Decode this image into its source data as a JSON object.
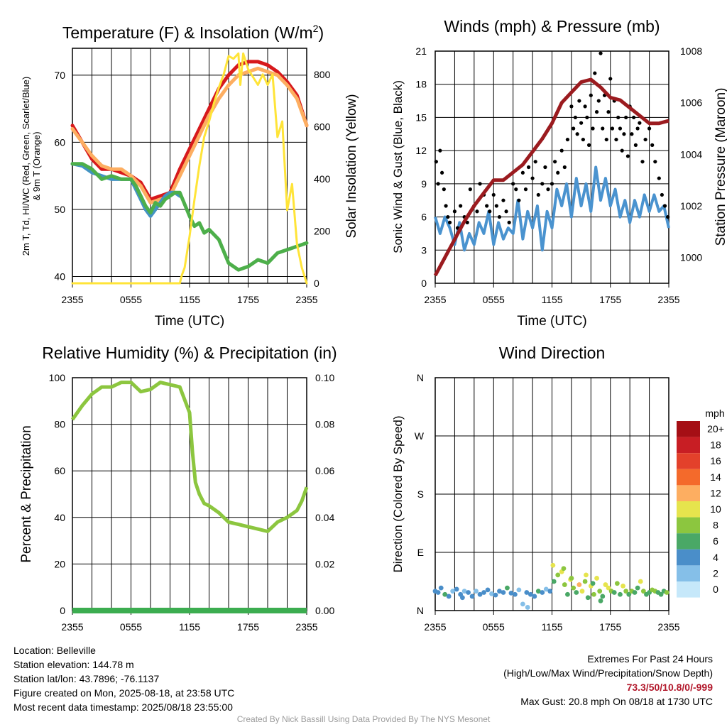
{
  "chart_data": [
    {
      "type": "line",
      "title": "Temperature (F) & Insolation (W/m²)",
      "ylabel": "2m T, Td, HI/WC (Red, Green, Scarlet/Blue) & 9m T (Orange)",
      "ylabel_right": "Solar Insolation (Yellow)",
      "xlabel": "Time (UTC)",
      "x_ticks": [
        "2355",
        "0555",
        "1155",
        "1755",
        "2355"
      ],
      "x_hours": [
        0,
        2,
        4,
        6,
        8,
        10,
        12,
        14,
        16,
        18,
        20,
        22,
        24
      ],
      "ylim": [
        39,
        74
      ],
      "y_ticks": [
        40,
        50,
        60,
        70
      ],
      "ylim_right": [
        0,
        900
      ],
      "y_ticks_right": [
        0,
        200,
        400,
        600,
        800
      ],
      "grid": true,
      "series": [
        {
          "color": "#d7191c",
          "axis": "left",
          "width": 5,
          "x": [
            0,
            1,
            2,
            3,
            4,
            5,
            6,
            7,
            8,
            9,
            10,
            11,
            12,
            13,
            14,
            15,
            16,
            17,
            18,
            19,
            20,
            21,
            22,
            23,
            24
          ],
          "y": [
            62.5,
            60,
            57.5,
            56,
            56,
            55.5,
            55,
            54,
            51.5,
            52,
            52.5,
            56,
            59,
            62,
            65,
            68,
            70,
            71.5,
            72,
            72,
            71.5,
            70.5,
            69,
            67,
            62.5
          ]
        },
        {
          "color": "#fdae61",
          "axis": "left",
          "width": 5,
          "x": [
            0,
            1,
            2,
            3,
            4,
            5,
            6,
            7,
            8,
            9,
            10,
            11,
            12,
            13,
            14,
            15,
            16,
            17,
            18,
            19,
            20,
            21,
            22,
            23,
            24
          ],
          "y": [
            62,
            60,
            58,
            56.5,
            56,
            56,
            55,
            53.5,
            51,
            51.5,
            52,
            55,
            58,
            61,
            64,
            66.5,
            68.5,
            70,
            70.5,
            71,
            70.5,
            70,
            68.5,
            66.5,
            62.5
          ]
        },
        {
          "color": "#4393c3",
          "axis": "left",
          "width": 5,
          "x": [
            0,
            1,
            2,
            3,
            4,
            5,
            6,
            6.5,
            7,
            7.5,
            8,
            8.5,
            9,
            9.5,
            10,
            10.5,
            11
          ],
          "y": [
            56.8,
            56.5,
            55.5,
            55,
            54.5,
            54.5,
            54.5,
            53,
            51.5,
            50,
            49,
            50,
            51,
            52,
            52.5,
            52.5,
            52
          ]
        },
        {
          "color": "#4daf4a",
          "axis": "left",
          "width": 5,
          "x": [
            0,
            1,
            2,
            3,
            4,
            5,
            6,
            6.5,
            7,
            7.5,
            8,
            8.5,
            9,
            9.5,
            10,
            10.5,
            11,
            12,
            12.5,
            13,
            13.5,
            14,
            15,
            16,
            17,
            18,
            19,
            20,
            21,
            22,
            23,
            24
          ],
          "y": [
            56.8,
            56.8,
            56,
            54.5,
            55,
            54.5,
            54.5,
            53.5,
            52,
            50.5,
            49.5,
            51,
            50.5,
            51.5,
            52,
            52.5,
            52.5,
            49,
            47.5,
            48,
            46.5,
            47,
            45.5,
            42,
            41,
            41.5,
            42.5,
            42,
            43.5,
            44,
            44.5,
            45
          ]
        },
        {
          "color": "#ffe438",
          "axis": "right",
          "width": 3,
          "x": [
            0,
            2,
            4,
            6,
            8,
            10,
            11,
            11.2,
            11.5,
            12,
            12.5,
            13,
            13.5,
            14,
            14.5,
            15,
            15.5,
            16,
            16.5,
            17,
            17.2,
            17.5,
            18,
            18.5,
            19,
            19.5,
            20,
            20.5,
            21,
            21.5,
            22,
            22.5,
            23,
            23.5,
            24
          ],
          "y": [
            0,
            0,
            0,
            0,
            0,
            0,
            0,
            30,
            60,
            180,
            320,
            450,
            560,
            620,
            690,
            750,
            800,
            870,
            860,
            880,
            760,
            880,
            820,
            790,
            760,
            800,
            760,
            800,
            560,
            620,
            280,
            380,
            150,
            60,
            0
          ]
        }
      ]
    },
    {
      "type": "line",
      "title": "Winds (mph) & Pressure (mb)",
      "ylabel": "Sonic Wind & Gust (Blue, Black)",
      "ylabel_right": "Station Pressure (Maroon)",
      "xlabel": "Time (UTC)",
      "x_ticks": [
        "2355",
        "0555",
        "1155",
        "1755",
        "2355"
      ],
      "ylim": [
        0,
        21
      ],
      "y_ticks": [
        0,
        3,
        6,
        9,
        12,
        15,
        18,
        21
      ],
      "ylim_right": [
        999,
        1008
      ],
      "y_ticks_right": [
        1000,
        1002,
        1004,
        1006,
        1008
      ],
      "grid": true,
      "series": [
        {
          "color": "#4a93cf",
          "axis": "left",
          "width": 4,
          "x": [
            0,
            0.5,
            1,
            1.5,
            2,
            2.5,
            3,
            3.5,
            4,
            4.5,
            5,
            5.5,
            6,
            6.5,
            7,
            7.5,
            8,
            8.5,
            9,
            9.5,
            10,
            10.5,
            11,
            11.5,
            12,
            12.5,
            13,
            13.5,
            14,
            14.5,
            15,
            15.5,
            16,
            16.5,
            17,
            17.5,
            18,
            18.5,
            19,
            19.5,
            20,
            20.5,
            21,
            21.5,
            22,
            22.5,
            23,
            23.5,
            24
          ],
          "y": [
            6,
            4.5,
            6,
            5,
            3.5,
            5.5,
            3,
            4.5,
            3.5,
            5.5,
            4.5,
            6.5,
            3.5,
            5.5,
            4,
            5,
            4.5,
            7.5,
            4,
            6.5,
            5,
            7,
            3,
            6.5,
            5,
            8.5,
            7,
            9,
            6,
            9.5,
            7,
            9,
            6.5,
            10.5,
            7.5,
            9.5,
            7,
            8.5,
            6,
            7.5,
            5.5,
            7.5,
            6,
            8,
            6.5,
            8,
            6.5,
            7,
            5
          ]
        },
        {
          "color": "#9b1b1f",
          "axis": "right",
          "width": 5,
          "x": [
            0,
            1,
            2,
            3,
            4,
            5,
            6,
            7,
            8,
            9,
            10,
            11,
            12,
            13,
            14,
            15,
            16,
            17,
            18,
            19,
            20,
            21,
            22,
            23,
            24
          ],
          "y": [
            999.3,
            1000,
            1000.7,
            1001.4,
            1002,
            1002.5,
            1003,
            1003,
            1003.3,
            1003.6,
            1004.1,
            1004.6,
            1005.2,
            1006,
            1006.4,
            1006.8,
            1006.9,
            1006.6,
            1006.2,
            1006.1,
            1005.8,
            1005.5,
            1005.2,
            1005.2,
            1005.3
          ]
        }
      ],
      "gust_points": {
        "color": "#000000",
        "x": [
          0.1,
          0.3,
          0.5,
          0.7,
          0.9,
          1.1,
          1.3,
          1.5,
          2.0,
          2.3,
          2.6,
          3.0,
          3.3,
          3.6,
          4.0,
          4.3,
          4.6,
          5.0,
          5.3,
          5.6,
          6.0,
          6.3,
          6.6,
          7.0,
          7.3,
          7.6,
          8.0,
          8.3,
          8.6,
          9.0,
          9.3,
          9.6,
          10.0,
          10.3,
          10.6,
          11.0,
          11.3,
          11.6,
          12.0,
          12.3,
          12.6,
          13.0,
          13.3,
          13.6,
          14.0,
          14.2,
          14.4,
          14.6,
          14.8,
          15.0,
          15.2,
          15.4,
          15.6,
          15.8,
          16.0,
          16.2,
          16.4,
          16.6,
          16.8,
          17.0,
          17.2,
          17.4,
          17.6,
          17.8,
          18.0,
          18.2,
          18.4,
          18.6,
          18.8,
          19.0,
          19.2,
          19.4,
          19.6,
          19.8,
          20.0,
          20.2,
          20.4,
          20.6,
          20.8,
          21.0,
          21.3,
          21.6,
          22.0,
          22.3,
          22.6,
          23.0,
          23.3,
          23.6,
          23.9
        ],
        "y": [
          11,
          9,
          12,
          10,
          8.5,
          7,
          6,
          5.5,
          6.5,
          5,
          7,
          6,
          5.5,
          8.5,
          7,
          6.5,
          9,
          8,
          7,
          6.5,
          8,
          7,
          6,
          7.5,
          6.5,
          5.5,
          9,
          8.5,
          7.5,
          10,
          8.5,
          10.5,
          9.5,
          11,
          8,
          9,
          10.5,
          8.5,
          9,
          11,
          10,
          12,
          10.5,
          13,
          16,
          14,
          15,
          13.5,
          16.5,
          14.5,
          13,
          16,
          15,
          12.5,
          17,
          14,
          19,
          15.5,
          16.5,
          20.8,
          14,
          17,
          13,
          15.5,
          18.5,
          14,
          16.5,
          13,
          15,
          14,
          12,
          13.5,
          15,
          11.5,
          16,
          13.5,
          15,
          12.5,
          14,
          14.5,
          11,
          13,
          14,
          12.5,
          11,
          9.5,
          8,
          7,
          6
        ]
      }
    },
    {
      "type": "line",
      "title": "Relative Humidity (%) & Precipitation (in)",
      "ylabel": "Percent & Precipitation",
      "x_ticks": [
        "2355",
        "0555",
        "1155",
        "1755",
        "2355"
      ],
      "ylim": [
        0,
        100
      ],
      "y_ticks": [
        0,
        20,
        40,
        60,
        80,
        100
      ],
      "ylim_right": [
        0,
        0.1
      ],
      "y_ticks_right": [
        "0.00",
        "0.02",
        "0.04",
        "0.06",
        "0.08",
        "0.10"
      ],
      "grid": true,
      "series": [
        {
          "color": "#8cc63f",
          "axis": "left",
          "width": 5,
          "x": [
            0,
            0.5,
            1,
            2,
            3,
            4,
            5,
            6,
            7,
            8,
            9,
            10,
            11,
            12,
            12.3,
            12.6,
            13,
            13.5,
            14,
            15,
            16,
            17,
            18,
            19,
            20,
            20.5,
            21,
            22,
            23,
            23.5,
            24
          ],
          "y": [
            82,
            85,
            88,
            93,
            96,
            96,
            98,
            98,
            94,
            95,
            98,
            97,
            96,
            85,
            68,
            55,
            50,
            46,
            45,
            42,
            38,
            37,
            36,
            35,
            34,
            36,
            38,
            40,
            43,
            47,
            53
          ]
        },
        {
          "color": "#3cad50",
          "axis": "right",
          "width": 8,
          "x": [
            0,
            24
          ],
          "y": [
            0,
            0
          ]
        }
      ]
    },
    {
      "type": "scatter",
      "title": "Wind Direction",
      "ylabel": "Direction (Colored By Speed)",
      "x_ticks": [
        "2355",
        "0555",
        "1155",
        "1755",
        "2355"
      ],
      "y_ticks": [
        "N",
        "E",
        "S",
        "W",
        "N"
      ],
      "ylim": [
        0,
        360
      ],
      "grid": true,
      "points": {
        "x": [
          0,
          0.3,
          0.6,
          1,
          1.4,
          1.8,
          2.2,
          2.6,
          3,
          3.4,
          3.8,
          4.2,
          4.6,
          5,
          5.4,
          5.8,
          6.2,
          6.6,
          7,
          7.4,
          7.8,
          8.2,
          8.6,
          9,
          9.4,
          9.8,
          10.2,
          10.6,
          11,
          11.4,
          11.8,
          12.2,
          12.6,
          13,
          13.3,
          13.6,
          13.9,
          14.2,
          14.5,
          14.8,
          15.1,
          15.4,
          15.7,
          16,
          16.3,
          16.6,
          16.9,
          17.2,
          17.5,
          17.8,
          18.1,
          18.4,
          18.7,
          19,
          19.3,
          19.6,
          19.9,
          20.2,
          20.5,
          20.8,
          21.1,
          21.4,
          21.7,
          22,
          22.3,
          22.6,
          22.9,
          23.2,
          23.5,
          23.8,
          12.1,
          13.2,
          14.0,
          15.5,
          16.2,
          17.0,
          9.5,
          2.8
        ],
        "y": [
          30,
          28,
          35,
          25,
          22,
          30,
          33,
          25,
          30,
          28,
          22,
          30,
          25,
          28,
          32,
          26,
          24,
          30,
          28,
          35,
          27,
          25,
          32,
          10,
          28,
          25,
          22,
          30,
          28,
          33,
          30,
          45,
          55,
          60,
          40,
          25,
          48,
          35,
          28,
          40,
          30,
          45,
          20,
          38,
          25,
          50,
          30,
          22,
          40,
          35,
          30,
          28,
          42,
          25,
          38,
          30,
          25,
          30,
          28,
          35,
          45,
          30,
          25,
          28,
          32,
          30,
          28,
          25,
          30,
          28,
          70,
          65,
          50,
          55,
          42,
          15,
          5,
          20
        ],
        "speed": [
          3,
          3,
          4,
          5,
          3,
          2,
          3,
          4,
          2,
          3,
          3,
          2,
          3,
          4,
          3,
          2,
          3,
          4,
          3,
          5,
          4,
          3,
          2,
          1,
          3,
          4,
          3,
          5,
          3,
          2,
          4,
          6,
          8,
          9,
          7,
          6,
          10,
          8,
          6,
          11,
          9,
          7,
          5,
          10,
          8,
          9,
          7,
          6,
          10,
          9,
          8,
          6,
          7,
          5,
          9,
          8,
          6,
          7,
          5,
          6,
          9,
          7,
          5,
          6,
          7,
          8,
          6,
          5,
          6,
          7,
          9,
          8,
          7,
          10,
          6,
          5,
          2,
          3
        ]
      },
      "colorbar": {
        "label": "mph",
        "labels": [
          "20+",
          "18",
          "16",
          "14",
          "12",
          "10",
          "8",
          "6",
          "4",
          "2",
          "0"
        ],
        "colors": [
          "#a50f15",
          "#c81e24",
          "#e3412b",
          "#f46a2b",
          "#fdae61",
          "#e6e44d",
          "#8cc63f",
          "#4aa866",
          "#4a8ec9",
          "#85bfe8",
          "#c6e8fa"
        ]
      }
    }
  ],
  "info": {
    "location": "Location: Belleville",
    "elevation": "Station elevation: 144.78 m",
    "latlon": "Station lat/lon: 43.7896; -76.1137",
    "created": "Figure created on Mon, 2025-08-18, at 23:58 UTC",
    "recent": "Most recent data timestamp: 2025/08/18 23:55:00"
  },
  "extremes": {
    "title": "Extremes For Past 24 Hours",
    "subtitle": "(High/Low/Max Wind/Precipitation/Snow Depth)",
    "values": "73.3/50/10.8/0/-999",
    "gust": "Max Gust: 20.8 mph On 08/18 at 1730 UTC"
  },
  "credit": "Created By Nick Bassill Using Data Provided By The NYS Mesonet"
}
